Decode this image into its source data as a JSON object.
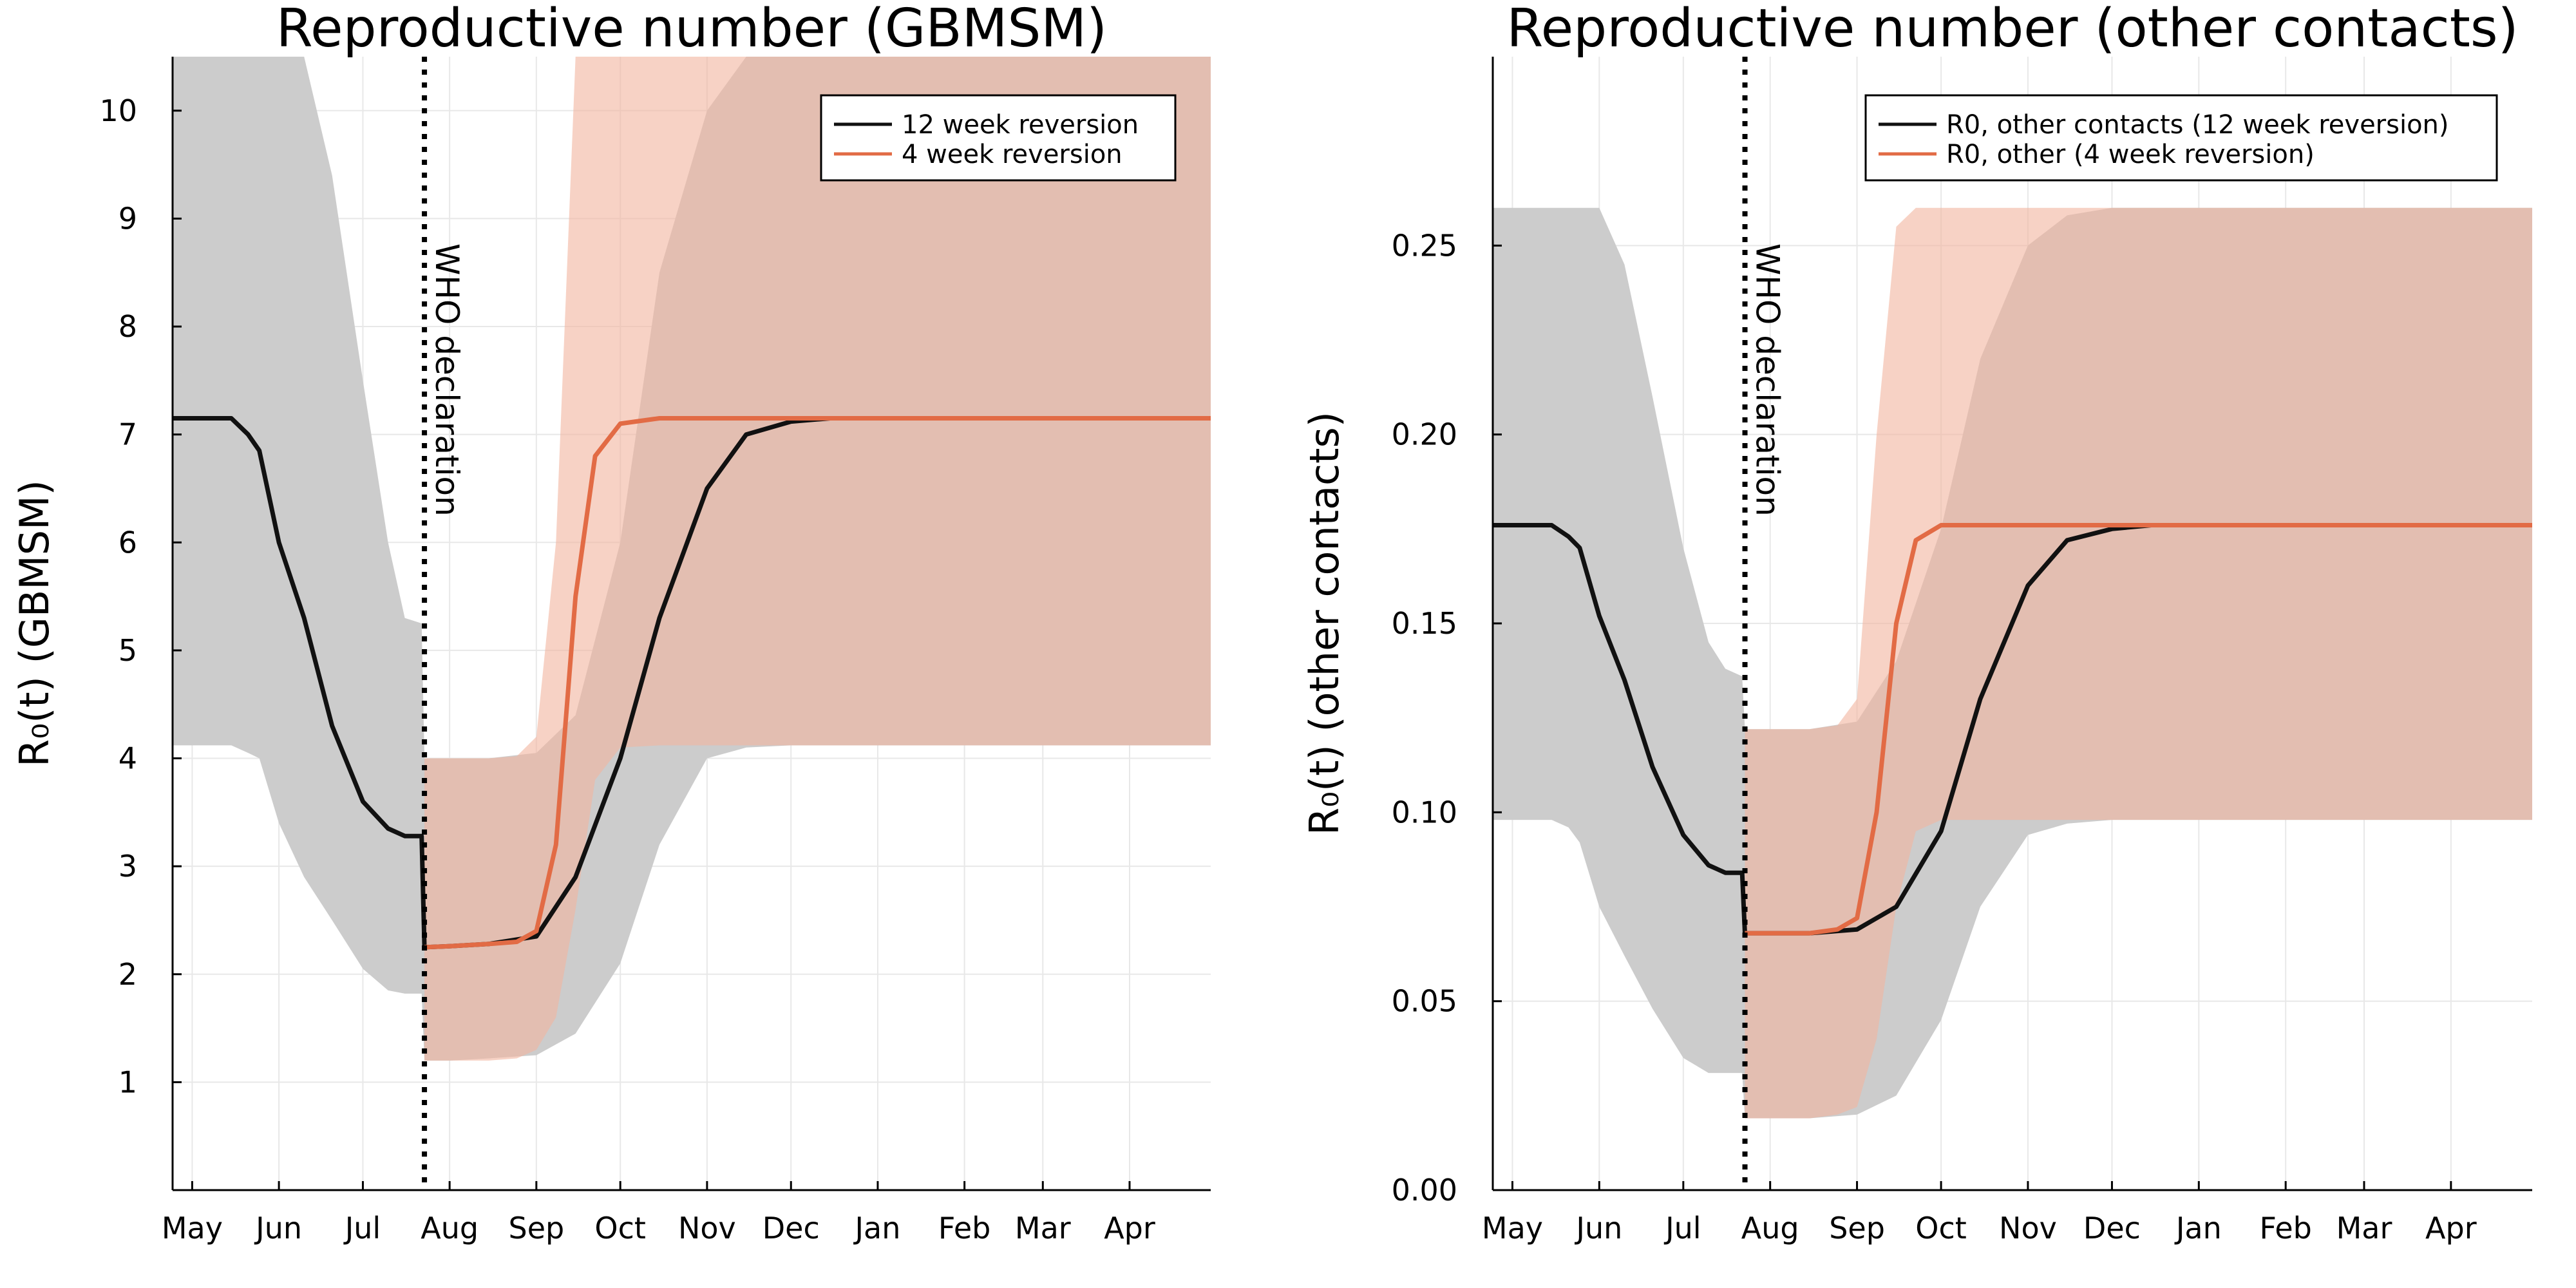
{
  "chart_data": [
    {
      "type": "line",
      "title": "Reproductive number (GBMSM)",
      "xlabel": "",
      "ylabel": "R₀(t) (GBMSM)",
      "x_tick_labels": [
        "May",
        "Jun",
        "Jul",
        "Aug",
        "Sep",
        "Oct",
        "Nov",
        "Dec",
        "Jan",
        "Feb",
        "Mar",
        "Apr"
      ],
      "y_ticks": [
        "1",
        "2",
        "3",
        "4",
        "5",
        "6",
        "7",
        "8",
        "9",
        "10"
      ],
      "ylim": [
        0,
        10.5
      ],
      "grid": true,
      "legend_position": "top-right",
      "annotation": "WHO declaration",
      "annotation_date": "2022-07-23",
      "series": [
        {
          "name": "12 week reversion",
          "color": "#000000",
          "band_color": "#cccccc",
          "x": [
            "2022-04-24",
            "2022-05-15",
            "2022-05-21",
            "2022-05-25",
            "2022-06-01",
            "2022-06-10",
            "2022-06-20",
            "2022-07-01",
            "2022-07-10",
            "2022-07-16",
            "2022-07-22",
            "2022-07-23",
            "2022-08-01",
            "2022-08-15",
            "2022-09-01",
            "2022-09-15",
            "2022-10-01",
            "2022-10-15",
            "2022-11-01",
            "2022-11-15",
            "2022-12-01",
            "2022-12-15",
            "2023-01-15",
            "2023-04-30"
          ],
          "values": [
            7.15,
            7.15,
            7.0,
            6.85,
            6.0,
            5.3,
            4.3,
            3.6,
            3.35,
            3.28,
            3.28,
            2.25,
            2.26,
            2.28,
            2.35,
            2.9,
            4.0,
            5.3,
            6.5,
            7.0,
            7.12,
            7.15,
            7.15,
            7.15
          ],
          "lower": [
            4.12,
            4.12,
            4.05,
            4.0,
            3.4,
            2.9,
            2.5,
            2.05,
            1.85,
            1.82,
            1.82,
            1.2,
            1.2,
            1.22,
            1.25,
            1.45,
            2.1,
            3.2,
            4.0,
            4.1,
            4.12,
            4.12,
            4.12,
            4.12
          ],
          "upper": [
            10.5,
            10.5,
            10.5,
            10.5,
            10.5,
            10.5,
            9.4,
            7.5,
            6.0,
            5.3,
            5.25,
            4.0,
            4.0,
            4.0,
            4.05,
            4.4,
            6.0,
            8.5,
            10.0,
            10.5,
            10.5,
            10.5,
            10.5,
            10.5
          ]
        },
        {
          "name": "4 week reversion",
          "color": "#e26b45",
          "band_color": "#f1b49e",
          "x": [
            "2022-07-23",
            "2022-08-01",
            "2022-08-15",
            "2022-08-25",
            "2022-09-01",
            "2022-09-08",
            "2022-09-15",
            "2022-09-22",
            "2022-10-01",
            "2022-10-15",
            "2023-04-30"
          ],
          "values": [
            2.25,
            2.26,
            2.28,
            2.3,
            2.4,
            3.2,
            5.5,
            6.8,
            7.1,
            7.15,
            7.15
          ],
          "lower": [
            1.2,
            1.2,
            1.2,
            1.22,
            1.3,
            1.6,
            2.6,
            3.8,
            4.1,
            4.12,
            4.12
          ],
          "upper": [
            4.0,
            4.0,
            4.0,
            4.02,
            4.2,
            6.0,
            10.5,
            10.5,
            10.5,
            10.5,
            10.5
          ]
        }
      ]
    },
    {
      "type": "line",
      "title": "Reproductive number (other contacts)",
      "xlabel": "",
      "ylabel": "R₀(t) (other contacts)",
      "x_tick_labels": [
        "May",
        "Jun",
        "Jul",
        "Aug",
        "Sep",
        "Oct",
        "Nov",
        "Dec",
        "Jan",
        "Feb",
        "Mar",
        "Apr"
      ],
      "y_ticks": [
        "0.00",
        "0.05",
        "0.10",
        "0.15",
        "0.20",
        "0.25"
      ],
      "ylim": [
        0,
        0.3
      ],
      "grid": true,
      "legend_position": "top-right",
      "annotation": "WHO declaration",
      "annotation_date": "2022-07-23",
      "series": [
        {
          "name": "R0, other contacts (12 week reversion)",
          "color": "#000000",
          "band_color": "#cccccc",
          "x": [
            "2022-04-24",
            "2022-05-15",
            "2022-05-21",
            "2022-05-25",
            "2022-06-01",
            "2022-06-10",
            "2022-06-20",
            "2022-07-01",
            "2022-07-10",
            "2022-07-16",
            "2022-07-22",
            "2022-07-23",
            "2022-08-01",
            "2022-08-15",
            "2022-09-01",
            "2022-09-15",
            "2022-10-01",
            "2022-10-15",
            "2022-11-01",
            "2022-11-15",
            "2022-12-01",
            "2022-12-15",
            "2023-01-15",
            "2023-04-30"
          ],
          "values": [
            0.176,
            0.176,
            0.173,
            0.17,
            0.152,
            0.135,
            0.112,
            0.094,
            0.086,
            0.084,
            0.084,
            0.068,
            0.068,
            0.068,
            0.069,
            0.075,
            0.095,
            0.13,
            0.16,
            0.172,
            0.175,
            0.176,
            0.176,
            0.176
          ],
          "lower": [
            0.098,
            0.098,
            0.096,
            0.092,
            0.075,
            0.062,
            0.048,
            0.035,
            0.031,
            0.031,
            0.031,
            0.019,
            0.019,
            0.019,
            0.02,
            0.025,
            0.045,
            0.075,
            0.094,
            0.097,
            0.098,
            0.098,
            0.098,
            0.098
          ],
          "upper": [
            0.26,
            0.26,
            0.26,
            0.26,
            0.26,
            0.245,
            0.21,
            0.17,
            0.145,
            0.138,
            0.136,
            0.122,
            0.122,
            0.122,
            0.124,
            0.14,
            0.175,
            0.22,
            0.25,
            0.258,
            0.26,
            0.26,
            0.26,
            0.26
          ]
        },
        {
          "name": "R0, other (4 week reversion)",
          "color": "#e26b45",
          "band_color": "#f1b49e",
          "x": [
            "2022-07-23",
            "2022-08-01",
            "2022-08-15",
            "2022-08-25",
            "2022-09-01",
            "2022-09-08",
            "2022-09-15",
            "2022-09-22",
            "2022-10-01",
            "2022-10-15",
            "2023-04-30"
          ],
          "values": [
            0.068,
            0.068,
            0.068,
            0.069,
            0.072,
            0.1,
            0.15,
            0.172,
            0.176,
            0.176,
            0.176
          ],
          "lower": [
            0.019,
            0.019,
            0.019,
            0.02,
            0.022,
            0.04,
            0.075,
            0.095,
            0.098,
            0.098,
            0.098
          ],
          "upper": [
            0.122,
            0.122,
            0.122,
            0.123,
            0.13,
            0.2,
            0.255,
            0.26,
            0.26,
            0.26,
            0.26
          ]
        }
      ]
    }
  ]
}
